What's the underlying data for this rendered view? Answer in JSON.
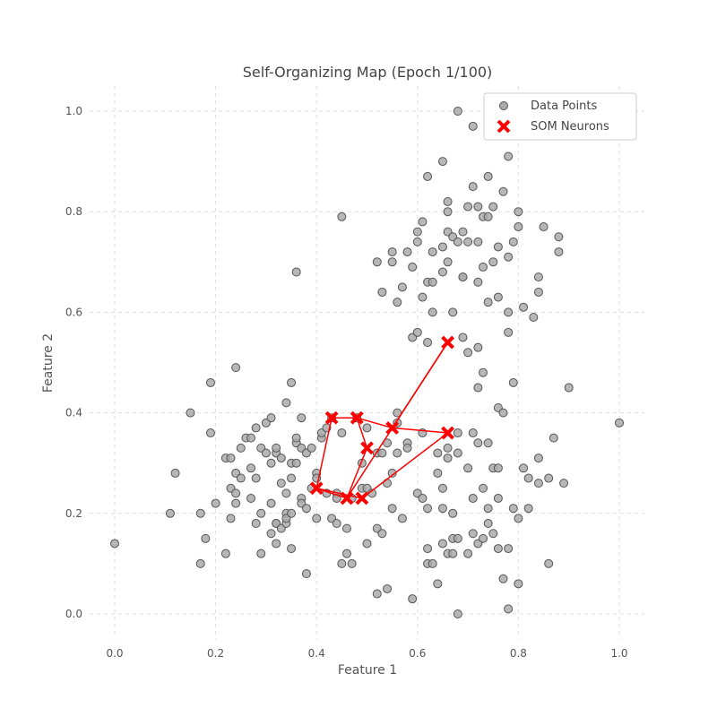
{
  "chart_data": {
    "type": "scatter",
    "title": "Self-Organizing Map (Epoch 1/100)",
    "xlabel": "Feature 1",
    "ylabel": "Feature 2",
    "xlim": [
      -0.05,
      1.05
    ],
    "ylim": [
      -0.05,
      1.05
    ],
    "xticks": [
      "0.0",
      "0.2",
      "0.4",
      "0.6",
      "0.8",
      "1.0"
    ],
    "yticks": [
      "0.0",
      "0.2",
      "0.4",
      "0.6",
      "0.8",
      "1.0"
    ],
    "grid": true,
    "legend_position": "top-right",
    "series": [
      {
        "name": "Data Points",
        "marker": "circle",
        "color": "#888888",
        "points": [
          [
            0.0,
            0.14
          ],
          [
            0.11,
            0.2
          ],
          [
            0.12,
            0.28
          ],
          [
            0.15,
            0.4
          ],
          [
            0.17,
            0.2
          ],
          [
            0.17,
            0.1
          ],
          [
            0.18,
            0.15
          ],
          [
            0.19,
            0.46
          ],
          [
            0.19,
            0.36
          ],
          [
            0.2,
            0.22
          ],
          [
            0.22,
            0.12
          ],
          [
            0.22,
            0.31
          ],
          [
            0.23,
            0.25
          ],
          [
            0.23,
            0.19
          ],
          [
            0.23,
            0.31
          ],
          [
            0.24,
            0.49
          ],
          [
            0.24,
            0.22
          ],
          [
            0.24,
            0.28
          ],
          [
            0.24,
            0.24
          ],
          [
            0.25,
            0.33
          ],
          [
            0.25,
            0.27
          ],
          [
            0.26,
            0.35
          ],
          [
            0.27,
            0.35
          ],
          [
            0.27,
            0.29
          ],
          [
            0.27,
            0.23
          ],
          [
            0.28,
            0.37
          ],
          [
            0.28,
            0.27
          ],
          [
            0.28,
            0.18
          ],
          [
            0.29,
            0.33
          ],
          [
            0.29,
            0.2
          ],
          [
            0.29,
            0.12
          ],
          [
            0.3,
            0.38
          ],
          [
            0.3,
            0.32
          ],
          [
            0.31,
            0.3
          ],
          [
            0.31,
            0.39
          ],
          [
            0.31,
            0.22
          ],
          [
            0.31,
            0.16
          ],
          [
            0.32,
            0.14
          ],
          [
            0.32,
            0.18
          ],
          [
            0.32,
            0.32
          ],
          [
            0.32,
            0.33
          ],
          [
            0.32,
            0.18
          ],
          [
            0.33,
            0.17
          ],
          [
            0.33,
            0.26
          ],
          [
            0.33,
            0.31
          ],
          [
            0.34,
            0.18
          ],
          [
            0.34,
            0.2
          ],
          [
            0.34,
            0.42
          ],
          [
            0.34,
            0.24
          ],
          [
            0.34,
            0.19
          ],
          [
            0.35,
            0.3
          ],
          [
            0.35,
            0.46
          ],
          [
            0.35,
            0.27
          ],
          [
            0.35,
            0.13
          ],
          [
            0.35,
            0.2
          ],
          [
            0.36,
            0.68
          ],
          [
            0.36,
            0.34
          ],
          [
            0.36,
            0.35
          ],
          [
            0.36,
            0.3
          ],
          [
            0.37,
            0.39
          ],
          [
            0.37,
            0.33
          ],
          [
            0.37,
            0.23
          ],
          [
            0.37,
            0.22
          ],
          [
            0.38,
            0.08
          ],
          [
            0.38,
            0.32
          ],
          [
            0.38,
            0.21
          ],
          [
            0.39,
            0.33
          ],
          [
            0.39,
            0.25
          ],
          [
            0.4,
            0.28
          ],
          [
            0.4,
            0.27
          ],
          [
            0.4,
            0.19
          ],
          [
            0.41,
            0.35
          ],
          [
            0.41,
            0.36
          ],
          [
            0.42,
            0.24
          ],
          [
            0.42,
            0.37
          ],
          [
            0.43,
            0.39
          ],
          [
            0.43,
            0.19
          ],
          [
            0.44,
            0.18
          ],
          [
            0.44,
            0.24
          ],
          [
            0.44,
            0.23
          ],
          [
            0.45,
            0.79
          ],
          [
            0.45,
            0.36
          ],
          [
            0.45,
            0.1
          ],
          [
            0.46,
            0.17
          ],
          [
            0.46,
            0.12
          ],
          [
            0.47,
            0.1
          ],
          [
            0.47,
            0.23
          ],
          [
            0.48,
            0.39
          ],
          [
            0.49,
            0.3
          ],
          [
            0.49,
            0.25
          ],
          [
            0.5,
            0.25
          ],
          [
            0.5,
            0.14
          ],
          [
            0.5,
            0.37
          ],
          [
            0.51,
            0.24
          ],
          [
            0.52,
            0.7
          ],
          [
            0.52,
            0.32
          ],
          [
            0.52,
            0.17
          ],
          [
            0.52,
            0.04
          ],
          [
            0.53,
            0.64
          ],
          [
            0.53,
            0.32
          ],
          [
            0.53,
            0.16
          ],
          [
            0.54,
            0.05
          ],
          [
            0.54,
            0.26
          ],
          [
            0.54,
            0.34
          ],
          [
            0.55,
            0.72
          ],
          [
            0.55,
            0.7
          ],
          [
            0.55,
            0.28
          ],
          [
            0.55,
            0.21
          ],
          [
            0.56,
            0.4
          ],
          [
            0.56,
            0.38
          ],
          [
            0.56,
            0.62
          ],
          [
            0.56,
            0.32
          ],
          [
            0.57,
            0.65
          ],
          [
            0.57,
            0.19
          ],
          [
            0.58,
            0.72
          ],
          [
            0.58,
            0.34
          ],
          [
            0.58,
            0.33
          ],
          [
            0.59,
            0.55
          ],
          [
            0.59,
            0.69
          ],
          [
            0.59,
            0.03
          ],
          [
            0.6,
            0.56
          ],
          [
            0.6,
            0.76
          ],
          [
            0.6,
            0.74
          ],
          [
            0.6,
            0.24
          ],
          [
            0.61,
            0.78
          ],
          [
            0.61,
            0.63
          ],
          [
            0.61,
            0.36
          ],
          [
            0.61,
            0.23
          ],
          [
            0.62,
            0.54
          ],
          [
            0.62,
            0.87
          ],
          [
            0.62,
            0.66
          ],
          [
            0.62,
            0.21
          ],
          [
            0.62,
            0.13
          ],
          [
            0.62,
            0.1
          ],
          [
            0.63,
            0.72
          ],
          [
            0.63,
            0.66
          ],
          [
            0.63,
            0.6
          ],
          [
            0.63,
            0.1
          ],
          [
            0.64,
            0.06
          ],
          [
            0.64,
            0.28
          ],
          [
            0.64,
            0.32
          ],
          [
            0.65,
            0.68
          ],
          [
            0.65,
            0.9
          ],
          [
            0.65,
            0.73
          ],
          [
            0.65,
            0.25
          ],
          [
            0.65,
            0.21
          ],
          [
            0.65,
            0.14
          ],
          [
            0.66,
            0.76
          ],
          [
            0.66,
            0.7
          ],
          [
            0.66,
            0.8
          ],
          [
            0.66,
            0.82
          ],
          [
            0.66,
            0.12
          ],
          [
            0.66,
            0.33
          ],
          [
            0.66,
            0.31
          ],
          [
            0.67,
            0.6
          ],
          [
            0.67,
            0.75
          ],
          [
            0.67,
            0.2
          ],
          [
            0.67,
            0.15
          ],
          [
            0.67,
            0.12
          ],
          [
            0.68,
            1.0
          ],
          [
            0.68,
            0.0
          ],
          [
            0.68,
            0.74
          ],
          [
            0.68,
            0.36
          ],
          [
            0.68,
            0.32
          ],
          [
            0.68,
            0.15
          ],
          [
            0.69,
            0.76
          ],
          [
            0.69,
            0.67
          ],
          [
            0.69,
            0.55
          ],
          [
            0.69,
            0.67
          ],
          [
            0.7,
            0.81
          ],
          [
            0.7,
            0.74
          ],
          [
            0.7,
            0.52
          ],
          [
            0.7,
            0.29
          ],
          [
            0.7,
            0.12
          ],
          [
            0.71,
            0.97
          ],
          [
            0.71,
            0.85
          ],
          [
            0.71,
            0.36
          ],
          [
            0.71,
            0.23
          ],
          [
            0.71,
            0.16
          ],
          [
            0.72,
            0.81
          ],
          [
            0.72,
            0.74
          ],
          [
            0.72,
            0.66
          ],
          [
            0.72,
            0.53
          ],
          [
            0.72,
            0.45
          ],
          [
            0.72,
            0.34
          ],
          [
            0.72,
            0.14
          ],
          [
            0.73,
            0.79
          ],
          [
            0.73,
            0.69
          ],
          [
            0.73,
            0.48
          ],
          [
            0.73,
            0.25
          ],
          [
            0.73,
            0.15
          ],
          [
            0.74,
            0.87
          ],
          [
            0.74,
            0.79
          ],
          [
            0.74,
            0.62
          ],
          [
            0.74,
            0.34
          ],
          [
            0.74,
            0.21
          ],
          [
            0.74,
            0.18
          ],
          [
            0.75,
            0.81
          ],
          [
            0.75,
            0.7
          ],
          [
            0.75,
            0.29
          ],
          [
            0.75,
            0.16
          ],
          [
            0.76,
            0.73
          ],
          [
            0.76,
            0.63
          ],
          [
            0.76,
            0.41
          ],
          [
            0.76,
            0.29
          ],
          [
            0.76,
            0.23
          ],
          [
            0.76,
            0.13
          ],
          [
            0.77,
            0.84
          ],
          [
            0.77,
            0.4
          ],
          [
            0.77,
            0.07
          ],
          [
            0.78,
            0.91
          ],
          [
            0.78,
            0.71
          ],
          [
            0.78,
            0.6
          ],
          [
            0.78,
            0.56
          ],
          [
            0.78,
            0.13
          ],
          [
            0.78,
            0.01
          ],
          [
            0.79,
            0.74
          ],
          [
            0.79,
            0.46
          ],
          [
            0.79,
            0.21
          ],
          [
            0.8,
            0.8
          ],
          [
            0.8,
            0.77
          ],
          [
            0.8,
            0.19
          ],
          [
            0.8,
            0.06
          ],
          [
            0.81,
            0.61
          ],
          [
            0.81,
            0.29
          ],
          [
            0.82,
            0.27
          ],
          [
            0.82,
            0.21
          ],
          [
            0.83,
            0.59
          ],
          [
            0.84,
            0.67
          ],
          [
            0.84,
            0.64
          ],
          [
            0.84,
            0.31
          ],
          [
            0.84,
            0.26
          ],
          [
            0.85,
            0.77
          ],
          [
            0.86,
            0.27
          ],
          [
            0.86,
            0.1
          ],
          [
            0.87,
            0.35
          ],
          [
            0.88,
            0.75
          ],
          [
            0.88,
            0.72
          ],
          [
            0.89,
            0.26
          ],
          [
            0.9,
            0.45
          ],
          [
            1.0,
            0.38
          ]
        ]
      },
      {
        "name": "SOM Neurons",
        "marker": "x",
        "color": "#ff0000",
        "points": [
          [
            0.43,
            0.39
          ],
          [
            0.48,
            0.39
          ],
          [
            0.55,
            0.37
          ],
          [
            0.66,
            0.54
          ],
          [
            0.4,
            0.25
          ],
          [
            0.5,
            0.33
          ],
          [
            0.66,
            0.36
          ],
          [
            0.46,
            0.23
          ],
          [
            0.49,
            0.23
          ]
        ],
        "edges": [
          [
            0,
            1
          ],
          [
            1,
            2
          ],
          [
            2,
            3
          ],
          [
            0,
            4
          ],
          [
            1,
            5
          ],
          [
            2,
            6
          ],
          [
            3,
            7
          ],
          [
            4,
            7
          ],
          [
            5,
            7
          ],
          [
            6,
            8
          ],
          [
            4,
            8
          ]
        ]
      }
    ]
  }
}
